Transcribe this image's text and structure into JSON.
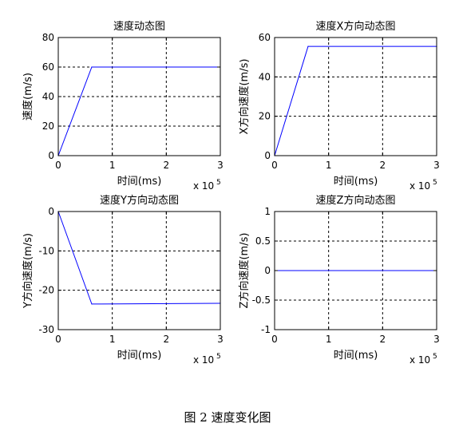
{
  "figure_caption": "图 2  速度变化图",
  "chart_data": [
    {
      "type": "line",
      "title": "速度动态图",
      "xlabel": "时间(ms)",
      "ylabel": "速度(m/s)",
      "x_multiplier": "x 10",
      "x_multiplier_exp": "5",
      "xlim": [
        0,
        3
      ],
      "ylim": [
        0,
        80
      ],
      "xticks": [
        0,
        1,
        2,
        3
      ],
      "yticks": [
        0,
        20,
        40,
        60,
        80
      ],
      "xtick_labels": [
        "0",
        "1",
        "2",
        "3"
      ],
      "ytick_labels": [
        "0",
        "20",
        "40",
        "60",
        "80"
      ],
      "grid": true,
      "line_color": "#0000ff",
      "series": [
        {
          "x": [
            0,
            0.62,
            3
          ],
          "y": [
            0,
            60,
            60
          ]
        }
      ]
    },
    {
      "type": "line",
      "title": "速度X方向动态图",
      "xlabel": "时间(ms)",
      "ylabel": "X方向速度(m/s)",
      "x_multiplier": "x 10",
      "x_multiplier_exp": "5",
      "xlim": [
        0,
        3
      ],
      "ylim": [
        0,
        60
      ],
      "xticks": [
        0,
        1,
        2,
        3
      ],
      "yticks": [
        0,
        20,
        40,
        60
      ],
      "xtick_labels": [
        "0",
        "1",
        "2",
        "3"
      ],
      "ytick_labels": [
        "0",
        "20",
        "40",
        "60"
      ],
      "grid": true,
      "line_color": "#0000ff",
      "series": [
        {
          "x": [
            0,
            0.62,
            3
          ],
          "y": [
            0,
            55.5,
            55.5
          ]
        }
      ]
    },
    {
      "type": "line",
      "title": "速度Y方向动态图",
      "xlabel": "时间(ms)",
      "ylabel": "Y方向速度(m/s)",
      "x_multiplier": "x 10",
      "x_multiplier_exp": "5",
      "xlim": [
        0,
        3
      ],
      "ylim": [
        -30,
        0
      ],
      "xticks": [
        0,
        1,
        2,
        3
      ],
      "yticks": [
        -30,
        -20,
        -10,
        0
      ],
      "xtick_labels": [
        "0",
        "1",
        "2",
        "3"
      ],
      "ytick_labels": [
        "-30",
        "-20",
        "-10",
        "0"
      ],
      "grid": true,
      "line_color": "#0000ff",
      "series": [
        {
          "x": [
            0,
            0.62,
            3
          ],
          "y": [
            0,
            -23.5,
            -23.3
          ]
        }
      ]
    },
    {
      "type": "line",
      "title": "速度Z方向动态图",
      "xlabel": "时间(ms)",
      "ylabel": "Z方向速度(m/s)",
      "x_multiplier": "x 10",
      "x_multiplier_exp": "5",
      "xlim": [
        0,
        3
      ],
      "ylim": [
        -1,
        1
      ],
      "xticks": [
        0,
        1,
        2,
        3
      ],
      "yticks": [
        -1,
        -0.5,
        0,
        0.5,
        1
      ],
      "xtick_labels": [
        "0",
        "1",
        "2",
        "3"
      ],
      "ytick_labels": [
        "-1",
        "-0.5",
        "0",
        "0.5",
        "1"
      ],
      "grid": true,
      "line_color": "#0000ff",
      "series": [
        {
          "x": [
            0,
            3
          ],
          "y": [
            0,
            0
          ]
        }
      ]
    }
  ]
}
